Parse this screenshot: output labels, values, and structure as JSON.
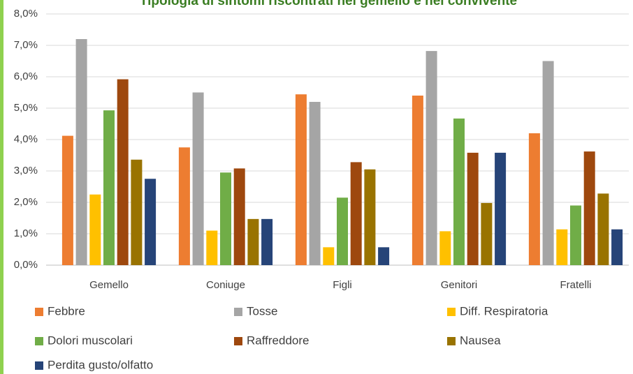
{
  "chart_data": {
    "type": "bar",
    "title": "Tipologia di sintomi riscontrati nel gemello e nel convivente",
    "categories": [
      "Gemello",
      "Coniuge",
      "Figli",
      "Genitori",
      "Fratelli"
    ],
    "series": [
      {
        "name": "Febbre",
        "color": "#ed7d31",
        "values": [
          4.12,
          3.75,
          5.44,
          5.4,
          4.2
        ]
      },
      {
        "name": "Tosse",
        "color": "#a5a5a5",
        "values": [
          7.2,
          5.5,
          5.2,
          6.82,
          6.5
        ]
      },
      {
        "name": "Diff. Respiratoria",
        "color": "#ffc000",
        "values": [
          2.25,
          1.1,
          0.57,
          1.08,
          1.14
        ]
      },
      {
        "name": "Dolori muscolari",
        "color": "#70ad47",
        "values": [
          4.93,
          2.95,
          2.15,
          4.67,
          1.9
        ]
      },
      {
        "name": "Raffreddore",
        "color": "#9e480e",
        "values": [
          5.92,
          3.08,
          3.28,
          3.58,
          3.62
        ]
      },
      {
        "name": "Nausea",
        "color": "#997300",
        "values": [
          3.36,
          1.47,
          3.05,
          1.98,
          2.28
        ]
      },
      {
        "name": "Perdita gusto/olfatto",
        "color": "#264478",
        "values": [
          2.75,
          1.47,
          0.57,
          3.58,
          1.14
        ]
      }
    ],
    "ylim": [
      0,
      8
    ],
    "yticks": [
      {
        "value": 0,
        "label": "0,0%"
      },
      {
        "value": 1,
        "label": "1,0%"
      },
      {
        "value": 2,
        "label": "2,0%"
      },
      {
        "value": 3,
        "label": "3,0%"
      },
      {
        "value": 4,
        "label": "4,0%"
      },
      {
        "value": 5,
        "label": "5,0%"
      },
      {
        "value": 6,
        "label": "6,0%"
      },
      {
        "value": 7,
        "label": "7,0%"
      },
      {
        "value": 8,
        "label": "8,0%"
      }
    ],
    "grid": true
  }
}
